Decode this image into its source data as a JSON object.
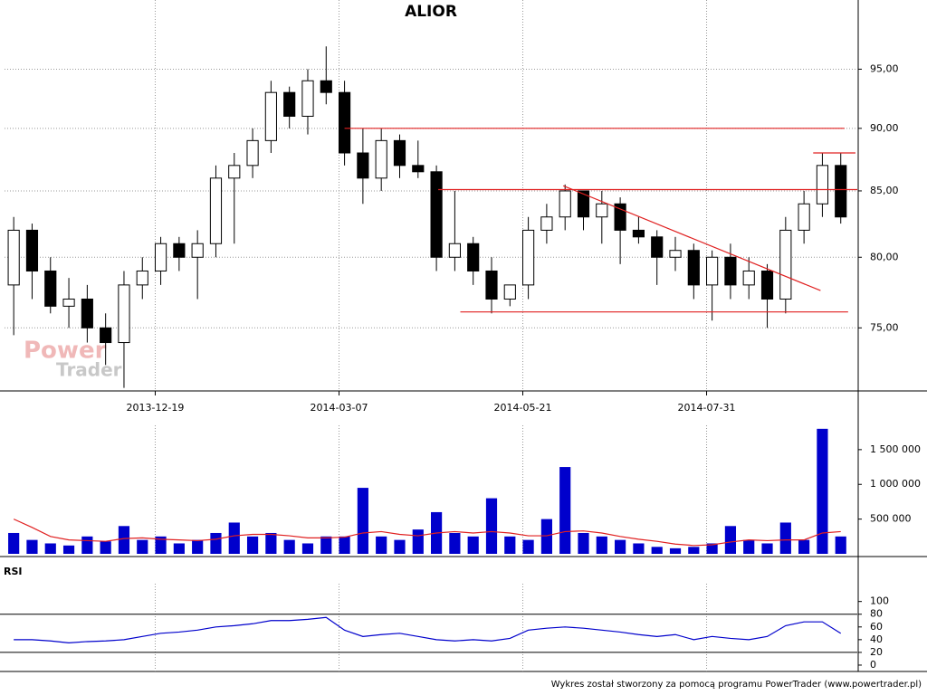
{
  "chart_data": [
    {
      "type": "candlestick",
      "title": "ALIOR",
      "log": true,
      "xlim": [
        0,
        46.4
      ],
      "ylim": [
        70.8,
        101.2
      ],
      "yticks": [
        {
          "value": 75,
          "label": "75,00"
        },
        {
          "value": 80,
          "label": "80,00"
        },
        {
          "value": 85,
          "label": "85,00"
        },
        {
          "value": 90,
          "label": "90,00"
        },
        {
          "value": 95,
          "label": "95,00"
        }
      ],
      "xticks": [
        {
          "value": 8.2,
          "label": "2013-12-19"
        },
        {
          "value": 18.2,
          "label": "2014-03-07"
        },
        {
          "value": 28.2,
          "label": "2014-05-21"
        },
        {
          "value": 38.2,
          "label": "2014-07-31"
        }
      ],
      "grid": true,
      "open": [
        78,
        82,
        79,
        76.5,
        77,
        75,
        74,
        78,
        79,
        81,
        80,
        81,
        86,
        87,
        89,
        93,
        91,
        94,
        93,
        88,
        86,
        89,
        87,
        86.5,
        80,
        81,
        79,
        77,
        78,
        82,
        83,
        85,
        83,
        84,
        82,
        81.5,
        80,
        80.5,
        78,
        80,
        78,
        79,
        77,
        82,
        84,
        87
      ],
      "high": [
        83,
        82.5,
        80,
        78.5,
        78,
        76,
        79,
        80,
        81.5,
        81.5,
        82,
        87,
        88,
        90,
        94,
        93.5,
        95,
        97,
        94,
        90,
        90,
        89.5,
        89,
        87,
        85,
        81.5,
        80,
        78,
        83,
        84,
        85.5,
        85,
        85,
        84.5,
        83,
        82,
        81.5,
        81,
        80.5,
        81,
        80,
        79.5,
        83,
        85,
        88,
        88
      ],
      "low": [
        74.5,
        77,
        76,
        75,
        74,
        72.5,
        71,
        77,
        78,
        79,
        77,
        80,
        81,
        86,
        88,
        90,
        89.5,
        92,
        87,
        84,
        85,
        86,
        86,
        79,
        79,
        78,
        76,
        76.5,
        77,
        81,
        82,
        82,
        81,
        79.5,
        81,
        78,
        79,
        77,
        75.5,
        77,
        77,
        75,
        76,
        81,
        83,
        82.5
      ],
      "close": [
        82,
        79,
        76.5,
        77,
        75,
        74,
        78,
        79,
        81,
        80,
        81,
        86,
        87,
        89,
        93,
        91,
        94,
        93,
        88,
        86,
        89,
        87,
        86.5,
        80,
        81,
        79,
        77,
        78,
        82,
        83,
        85,
        83,
        84,
        82,
        81.5,
        80,
        80.5,
        78,
        80,
        78,
        79,
        77,
        82,
        84,
        87,
        83
      ],
      "up_color": "#ffffff",
      "down_color": "#000000",
      "trendlines": {
        "color": "#e02020",
        "lines": [
          {
            "x": [
              18.5,
              45.7
            ],
            "y": [
              90,
              90
            ]
          },
          {
            "x": [
              23.6,
              46.4
            ],
            "y": [
              85.1,
              85.1
            ]
          },
          {
            "x": [
              24.8,
              45.9
            ],
            "y": [
              76.1,
              76.1
            ]
          },
          {
            "x": [
              44.0,
              46.3
            ],
            "y": [
              88,
              88
            ]
          },
          {
            "x": [
              30.4,
              44.4
            ],
            "y": [
              85.4,
              77.6
            ]
          }
        ]
      }
    },
    {
      "type": "bar",
      "xlim": [
        0,
        46.4
      ],
      "ylim": [
        0,
        1850000
      ],
      "yticks": [
        {
          "value": 500000,
          "label": "500 000"
        },
        {
          "value": 1000000,
          "label": "1 000 000"
        },
        {
          "value": 1500000,
          "label": "1 500 000"
        }
      ],
      "color": "#0000cc",
      "values": [
        300000,
        200000,
        150000,
        120000,
        250000,
        180000,
        400000,
        200000,
        250000,
        150000,
        200000,
        300000,
        450000,
        250000,
        300000,
        200000,
        150000,
        250000,
        250000,
        950000,
        250000,
        200000,
        350000,
        600000,
        300000,
        250000,
        800000,
        250000,
        200000,
        500000,
        1250000,
        300000,
        250000,
        200000,
        150000,
        100000,
        80000,
        100000,
        150000,
        400000,
        200000,
        150000,
        450000,
        200000,
        1800000,
        250000
      ],
      "moving_average": {
        "color": "#e02020",
        "values": [
          500000,
          380000,
          250000,
          200000,
          190000,
          180000,
          220000,
          230000,
          210000,
          200000,
          190000,
          210000,
          260000,
          280000,
          280000,
          260000,
          230000,
          230000,
          240000,
          300000,
          320000,
          280000,
          260000,
          300000,
          320000,
          300000,
          320000,
          300000,
          260000,
          260000,
          320000,
          330000,
          300000,
          250000,
          210000,
          180000,
          140000,
          120000,
          130000,
          170000,
          200000,
          190000,
          200000,
          200000,
          300000,
          320000
        ]
      }
    },
    {
      "type": "line",
      "title": "RSI",
      "xlim": [
        0,
        46.4
      ],
      "ylim": [
        -10,
        128
      ],
      "yticks": [
        0,
        20,
        40,
        60,
        80,
        100
      ],
      "levels": [
        20,
        80
      ],
      "color": "#0000cc",
      "values": [
        40,
        40,
        38,
        35,
        37,
        38,
        40,
        45,
        50,
        52,
        55,
        60,
        62,
        65,
        70,
        70,
        72,
        75,
        55,
        45,
        48,
        50,
        45,
        40,
        38,
        40,
        38,
        42,
        55,
        58,
        60,
        58,
        55,
        52,
        48,
        45,
        48,
        40,
        45,
        42,
        40,
        45,
        62,
        68,
        68,
        50
      ]
    }
  ],
  "watermark": [
    "Power",
    "Trader"
  ],
  "footer": "Wykres został stworzony za pomocą programu PowerTrader (www.powertrader.pl)"
}
